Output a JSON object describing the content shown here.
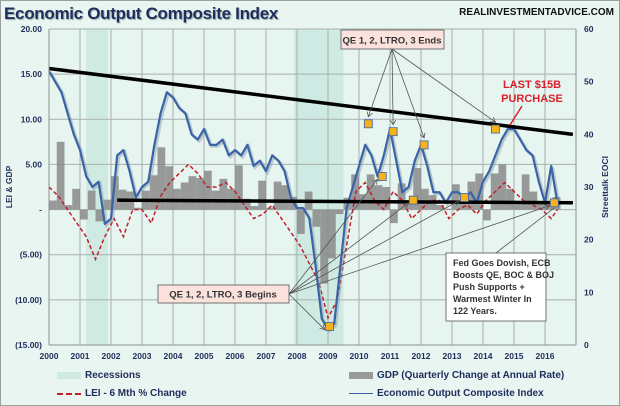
{
  "chart_data": {
    "type": "line",
    "title": "Economic Output Composite Index",
    "source": "REALINVESTMENTADVICE.COM",
    "xlabel": "",
    "ylabel_left": "LEI & GDP",
    "ylabel_right": "Streettalk EOCI",
    "xlim": [
      2000,
      2016.9
    ],
    "ylim_left": [
      -15,
      20
    ],
    "ylim_right": [
      0,
      60
    ],
    "x_ticks": [
      "2000",
      "2001",
      "2002",
      "2003",
      "2004",
      "2005",
      "2006",
      "2007",
      "2008",
      "2009",
      "2010",
      "2011",
      "2012",
      "2013",
      "2014",
      "2015",
      "2016"
    ],
    "y_ticks_left": [
      "20.00",
      "15.00",
      "10.00",
      "5.00",
      "-",
      "(5.00)",
      "(10.00)",
      "(15.00)"
    ],
    "y_ticks_left_values": [
      20,
      15,
      10,
      5,
      0,
      -5,
      -10,
      -15
    ],
    "y_ticks_right": [
      "60",
      "50",
      "40",
      "30",
      "20",
      "10",
      "0"
    ],
    "y_ticks_right_values": [
      60,
      50,
      40,
      30,
      20,
      10,
      0
    ],
    "grid": true,
    "recessions": [
      [
        2001.2,
        2001.9
      ],
      [
        2007.9,
        2009.5
      ]
    ],
    "series": [
      {
        "name": "Economic Output Composite Index",
        "axis": "right",
        "color": "#3a63a8",
        "x": [
          2000,
          2000.2,
          2000.4,
          2000.6,
          2000.8,
          2001,
          2001.2,
          2001.4,
          2001.6,
          2001.8,
          2002,
          2002.2,
          2002.4,
          2002.6,
          2002.8,
          2003,
          2003.2,
          2003.4,
          2003.6,
          2003.8,
          2004,
          2004.2,
          2004.4,
          2004.6,
          2004.8,
          2005,
          2005.2,
          2005.4,
          2005.6,
          2005.8,
          2006,
          2006.2,
          2006.4,
          2006.6,
          2006.8,
          2007,
          2007.2,
          2007.4,
          2007.6,
          2007.8,
          2008,
          2008.2,
          2008.4,
          2008.6,
          2008.8,
          2009,
          2009.2,
          2009.4,
          2009.6,
          2009.8,
          2010,
          2010.2,
          2010.4,
          2010.6,
          2010.8,
          2011,
          2011.2,
          2011.4,
          2011.6,
          2011.8,
          2012,
          2012.2,
          2012.4,
          2012.6,
          2012.8,
          2013,
          2013.2,
          2013.4,
          2013.6,
          2013.8,
          2014,
          2014.2,
          2014.4,
          2014.6,
          2014.8,
          2015,
          2015.2,
          2015.4,
          2015.6,
          2015.8,
          2016,
          2016.2,
          2016.4
        ],
        "values": [
          52,
          50,
          48,
          44,
          40,
          37,
          32,
          30,
          31,
          23,
          24,
          36,
          37,
          33,
          28,
          30,
          31,
          38,
          44,
          48,
          47,
          45,
          44,
          40,
          39,
          41,
          38,
          38,
          39,
          36,
          37,
          36,
          38,
          34,
          35,
          33,
          36,
          35,
          33,
          28,
          26,
          26,
          24,
          15,
          5,
          3,
          4,
          15,
          26,
          30,
          34,
          38,
          36,
          32,
          36,
          41,
          35,
          29,
          30,
          35,
          38,
          34,
          29,
          29,
          27,
          29,
          29,
          28,
          29,
          27,
          31,
          33,
          36,
          39,
          41,
          41,
          39,
          37,
          36,
          31,
          27,
          34,
          27
        ]
      },
      {
        "name": "LEI - 6 Mth % Change",
        "axis": "left",
        "color": "#c0202a",
        "x": [
          2000,
          2000.3,
          2000.6,
          2000.9,
          2001.2,
          2001.5,
          2001.8,
          2002.1,
          2002.4,
          2002.7,
          2003,
          2003.3,
          2003.6,
          2003.9,
          2004.2,
          2004.5,
          2004.8,
          2005.1,
          2005.4,
          2005.7,
          2006,
          2006.3,
          2006.6,
          2006.9,
          2007.2,
          2007.5,
          2007.8,
          2008.1,
          2008.4,
          2008.7,
          2009,
          2009.3,
          2009.6,
          2009.9,
          2010.2,
          2010.5,
          2010.8,
          2011.1,
          2011.4,
          2011.7,
          2012,
          2012.3,
          2012.6,
          2012.9,
          2013.2,
          2013.5,
          2013.8,
          2014.1,
          2014.4,
          2014.7,
          2015,
          2015.3,
          2015.6,
          2015.9,
          2016.2,
          2016.4
        ],
        "values": [
          2.5,
          1.5,
          0,
          -1.5,
          -3,
          -5.5,
          -3,
          -1,
          -3,
          0,
          0,
          -1.5,
          1.5,
          3,
          4,
          5,
          4,
          2.5,
          2.5,
          3,
          2,
          0.5,
          -1,
          -0.5,
          0.5,
          -1,
          -2.5,
          -4,
          -6,
          -8,
          -12,
          -10,
          -4,
          2,
          3,
          1,
          0,
          2,
          1,
          -1,
          0,
          1,
          1,
          -1,
          0,
          0.5,
          -0.5,
          1,
          2,
          3,
          2,
          1,
          0.5,
          0,
          -1,
          0
        ]
      }
    ],
    "gdp": {
      "name": "GDP (Quarterly Change at Annual Rate)",
      "axis": "left",
      "color": "#8a8a8a",
      "x": [
        2000,
        2000.25,
        2000.5,
        2000.75,
        2001,
        2001.25,
        2001.5,
        2001.75,
        2002,
        2002.25,
        2002.5,
        2002.75,
        2003,
        2003.25,
        2003.5,
        2003.75,
        2004,
        2004.25,
        2004.5,
        2004.75,
        2005,
        2005.25,
        2005.5,
        2005.75,
        2006,
        2006.25,
        2006.5,
        2006.75,
        2007,
        2007.25,
        2007.5,
        2007.75,
        2008,
        2008.25,
        2008.5,
        2008.75,
        2009,
        2009.25,
        2009.5,
        2009.75,
        2010,
        2010.25,
        2010.5,
        2010.75,
        2011,
        2011.25,
        2011.5,
        2011.75,
        2012,
        2012.25,
        2012.5,
        2012.75,
        2013,
        2013.25,
        2013.5,
        2013.75,
        2014,
        2014.25,
        2014.5,
        2014.75,
        2015,
        2015.25,
        2015.5,
        2015.75,
        2016,
        2016.25
      ],
      "values": [
        1,
        7.5,
        0.5,
        2.3,
        -1.1,
        2.1,
        -1.3,
        1.1,
        3.7,
        2.2,
        2,
        0.2,
        2.1,
        3.8,
        6.9,
        4.8,
        2.3,
        3,
        3.7,
        3.5,
        4.3,
        2.1,
        3.4,
        2.3,
        4.9,
        1.2,
        0.4,
        3.2,
        0.2,
        3.1,
        2.7,
        1.4,
        -2.7,
        2,
        -1.9,
        -8.2,
        -5.4,
        -0.5,
        1.3,
        3.9,
        1.7,
        3.9,
        2.7,
        2.5,
        -1.5,
        2.9,
        0.8,
        4.6,
        2.3,
        1.6,
        0.5,
        0.1,
        2.8,
        0.8,
        3.1,
        4,
        -1.2,
        4,
        5,
        2.3,
        0.6,
        3.9,
        2,
        0.9,
        0.8,
        1.4
      ]
    },
    "trendlines": [
      {
        "name": "upper-trendline",
        "axis": "right",
        "x": [
          2000,
          2016.9
        ],
        "values": [
          52.5,
          40
        ]
      },
      {
        "name": "lower-trendline",
        "axis": "right",
        "x": [
          2002.2,
          2016.9
        ],
        "values": [
          27.5,
          27
        ]
      }
    ],
    "markers": {
      "axis": "right",
      "color": "#f7b21b",
      "points": [
        {
          "x": 2009.05,
          "y": 3.5
        },
        {
          "x": 2010.3,
          "y": 42
        },
        {
          "x": 2010.75,
          "y": 32
        },
        {
          "x": 2011.1,
          "y": 40.5
        },
        {
          "x": 2011.75,
          "y": 27.5
        },
        {
          "x": 2012.1,
          "y": 38
        },
        {
          "x": 2013.4,
          "y": 28
        },
        {
          "x": 2014.4,
          "y": 41
        },
        {
          "x": 2016.3,
          "y": 27
        }
      ]
    },
    "annotations": {
      "qe_ends": "QE 1, 2, LTRO, 3 Ends",
      "qe_begins": "QE 1, 2, LTRO, 3 Begins",
      "last_purchase_line1": "LAST $15B",
      "last_purchase_line2": "PURCHASE",
      "fed_lines": [
        "Fed Goes Dovish, ECB",
        "Boosts QE, BOC & BOJ",
        "Push Supports +",
        "Warmest Winter In",
        "122 Years."
      ]
    },
    "legend": {
      "placement": "bottom",
      "items": [
        {
          "label": "Recessions",
          "color": "#cfeae3"
        },
        {
          "label": "GDP (Quarterly Change at Annual Rate)",
          "color": "#9a9a9a"
        },
        {
          "label": "LEI - 6 Mth % Change",
          "color": "#c0202a"
        },
        {
          "label": "Economic Output Composite Index",
          "color": "#3a63a8"
        }
      ]
    }
  }
}
